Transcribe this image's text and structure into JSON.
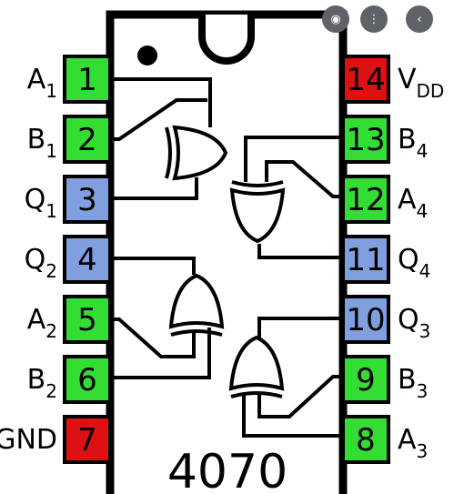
{
  "chip": {
    "name": "4070"
  },
  "colors": {
    "input": "#33dd33",
    "output": "#7f9fdf",
    "power": "#dd1111",
    "body": "#ffffff",
    "stroke": "#000000"
  },
  "pins": [
    {
      "num": "1",
      "label": "A",
      "sub": "1",
      "type": "input"
    },
    {
      "num": "2",
      "label": "B",
      "sub": "1",
      "type": "input"
    },
    {
      "num": "3",
      "label": "Q",
      "sub": "1",
      "type": "output"
    },
    {
      "num": "4",
      "label": "Q",
      "sub": "2",
      "type": "output"
    },
    {
      "num": "5",
      "label": "A",
      "sub": "2",
      "type": "input"
    },
    {
      "num": "6",
      "label": "B",
      "sub": "2",
      "type": "input"
    },
    {
      "num": "7",
      "label": "GND",
      "sub": "",
      "type": "power"
    },
    {
      "num": "8",
      "label": "A",
      "sub": "3",
      "type": "input"
    },
    {
      "num": "9",
      "label": "B",
      "sub": "3",
      "type": "input"
    },
    {
      "num": "10",
      "label": "Q",
      "sub": "3",
      "type": "output"
    },
    {
      "num": "11",
      "label": "Q",
      "sub": "4",
      "type": "output"
    },
    {
      "num": "12",
      "label": "A",
      "sub": "4",
      "type": "input"
    },
    {
      "num": "13",
      "label": "B",
      "sub": "4",
      "type": "input"
    },
    {
      "num": "14",
      "label": "V",
      "sub": "DD",
      "type": "power"
    }
  ],
  "icons": [
    "lens-icon",
    "more-icon",
    "back-icon"
  ]
}
